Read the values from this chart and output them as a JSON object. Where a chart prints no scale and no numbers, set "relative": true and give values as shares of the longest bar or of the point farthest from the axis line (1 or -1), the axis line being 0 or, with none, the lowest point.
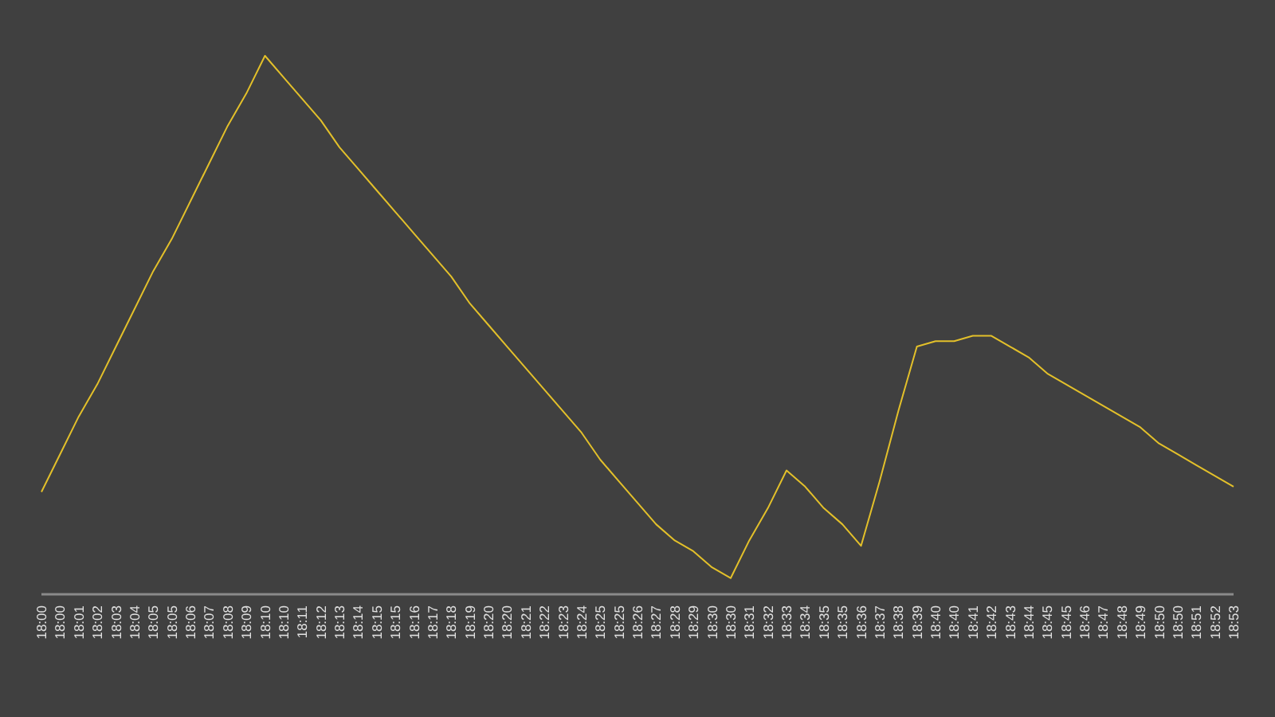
{
  "chart_data": {
    "type": "line",
    "relative": true,
    "color": "#e3c02a",
    "categories": [
      "18:00",
      "18:00",
      "18:01",
      "18:02",
      "18:03",
      "18:04",
      "18:05",
      "18:05",
      "18:06",
      "18:07",
      "18:08",
      "18:09",
      "18:10",
      "18:10",
      "18:11",
      "18:12",
      "18:13",
      "18:14",
      "18:15",
      "18:15",
      "18:16",
      "18:17",
      "18:18",
      "18:19",
      "18:20",
      "18:20",
      "18:21",
      "18:22",
      "18:23",
      "18:24",
      "18:25",
      "18:25",
      "18:26",
      "18:27",
      "18:28",
      "18:29",
      "18:30",
      "18:30",
      "18:31",
      "18:32",
      "18:33",
      "18:34",
      "18:35",
      "18:35",
      "18:36",
      "18:37",
      "18:38",
      "18:39",
      "18:40",
      "18:40",
      "18:41",
      "18:42",
      "18:43",
      "18:44",
      "18:45",
      "18:45",
      "18:46",
      "18:47",
      "18:48",
      "18:49",
      "18:50",
      "18:50",
      "18:51",
      "18:52",
      "18:53"
    ],
    "values": [
      0.19,
      0.26,
      0.33,
      0.39,
      0.46,
      0.53,
      0.6,
      0.66,
      0.73,
      0.8,
      0.87,
      0.93,
      1.0,
      0.96,
      0.92,
      0.88,
      0.83,
      0.79,
      0.75,
      0.71,
      0.67,
      0.63,
      0.59,
      0.54,
      0.5,
      0.46,
      0.42,
      0.38,
      0.34,
      0.3,
      0.25,
      0.21,
      0.17,
      0.13,
      0.1,
      0.08,
      0.05,
      0.03,
      0.1,
      0.16,
      0.23,
      0.2,
      0.16,
      0.13,
      0.09,
      0.21,
      0.34,
      0.46,
      0.47,
      0.47,
      0.48,
      0.48,
      0.46,
      0.44,
      0.41,
      0.39,
      0.37,
      0.35,
      0.33,
      0.31,
      0.28,
      0.26,
      0.24,
      0.22,
      0.2
    ]
  }
}
